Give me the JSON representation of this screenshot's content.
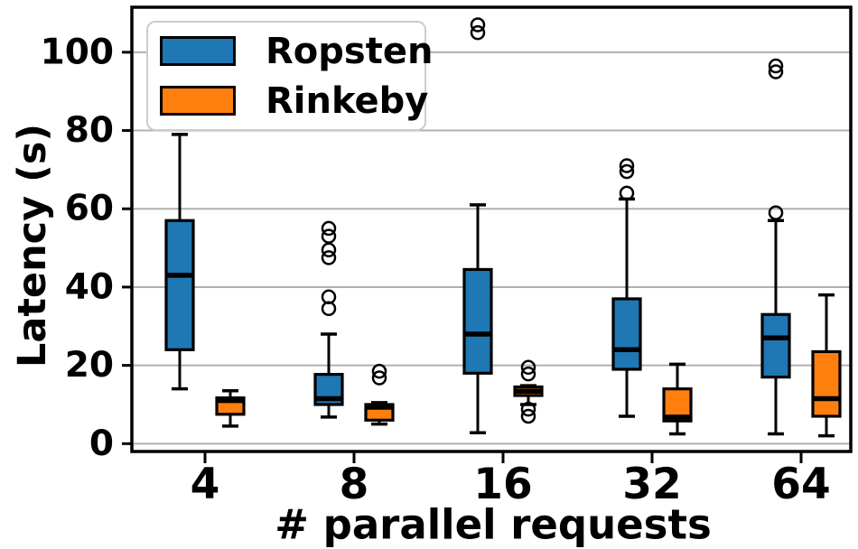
{
  "figure": {
    "ylabel": "Latency (s)",
    "xlabel": "# parallel requests"
  },
  "chart_data": {
    "type": "boxplot",
    "title": "",
    "xlabel": "# parallel requests",
    "ylabel": "Latency (s)",
    "categories": [
      "4",
      "8",
      "16",
      "32",
      "64"
    ],
    "yticks": [
      0,
      20,
      40,
      60,
      80,
      100
    ],
    "ylim": [
      -2,
      111.5
    ],
    "grid": "horizontal",
    "grid_color": "#b0b0b0",
    "legend_position": "upper-left",
    "series": [
      {
        "name": "Ropsten",
        "color": "#1f77b4",
        "boxes": [
          {
            "whislo": 14,
            "q1": 24,
            "med": 43,
            "q3": 57,
            "whishi": 79,
            "fliers": []
          },
          {
            "whislo": 6.8,
            "q1": 10,
            "med": 11.5,
            "q3": 17.7,
            "whishi": 28,
            "fliers": [
              34.5,
              37.5,
              47.5,
              49.5,
              53,
              55
            ]
          },
          {
            "whislo": 2.8,
            "q1": 18,
            "med": 28,
            "q3": 44.5,
            "whishi": 61,
            "fliers": [
              105,
              107
            ]
          },
          {
            "whislo": 7,
            "q1": 19,
            "med": 24,
            "q3": 37,
            "whishi": 62.5,
            "fliers": [
              64,
              69.5,
              71
            ]
          },
          {
            "whislo": 2.5,
            "q1": 17,
            "med": 27,
            "q3": 33,
            "whishi": 57,
            "fliers": [
              59,
              95,
              96.5
            ]
          }
        ]
      },
      {
        "name": "Rinkeby",
        "color": "#ff7f0e",
        "boxes": [
          {
            "whislo": 4.5,
            "q1": 7.5,
            "med": 11,
            "q3": 11.7,
            "whishi": 13.5,
            "fliers": []
          },
          {
            "whislo": 5,
            "q1": 6,
            "med": 9.3,
            "q3": 10,
            "whishi": 10.5,
            "fliers": [
              18.5,
              16.8
            ]
          },
          {
            "whislo": 10,
            "q1": 12.3,
            "med": 13.4,
            "q3": 14.5,
            "whishi": 14.8,
            "fliers": [
              19.5,
              17.8,
              8.8,
              7
            ]
          },
          {
            "whislo": 2.5,
            "q1": 5.8,
            "med": 6.8,
            "q3": 14,
            "whishi": 20.3,
            "fliers": []
          },
          {
            "whislo": 2,
            "q1": 7,
            "med": 11.5,
            "q3": 23.5,
            "whishi": 38,
            "fliers": []
          }
        ]
      }
    ]
  }
}
